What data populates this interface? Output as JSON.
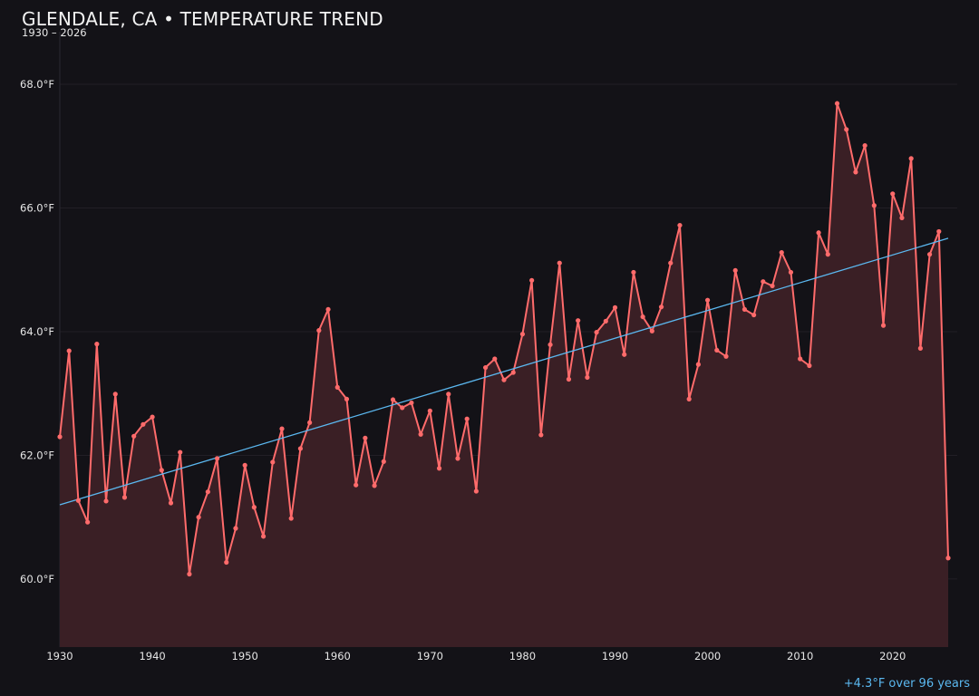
{
  "chart_data": {
    "type": "line",
    "title": "GLENDALE, CA • TEMPERATURE TREND",
    "subtitle": "1930 – 2026",
    "annotation": "+4.3°F over 96 years",
    "xlabel": "",
    "ylabel": "",
    "xlim": [
      1930,
      2026
    ],
    "ylim": [
      58.9,
      68.85
    ],
    "x_ticks": [
      "1930",
      "1940",
      "1950",
      "1960",
      "1970",
      "1980",
      "1990",
      "2000",
      "2010",
      "2020"
    ],
    "y_ticks": [
      {
        "value": 60,
        "label": "60.0°F"
      },
      {
        "value": 62,
        "label": "62.0°F"
      },
      {
        "value": 64,
        "label": "64.0°F"
      },
      {
        "value": 66,
        "label": "66.0°F"
      },
      {
        "value": 68,
        "label": "68.0°F"
      }
    ],
    "grid": true,
    "colors": {
      "background": "#131217",
      "series": "#ff6b6b",
      "fill": "#3a1f25",
      "trend": "#5bb8f0",
      "grid": "#221f26"
    },
    "series": [
      {
        "x": [
          1930,
          1931,
          1932,
          1933,
          1934,
          1935,
          1936,
          1937,
          1938,
          1939,
          1940,
          1941,
          1942,
          1943,
          1944,
          1945,
          1946,
          1947,
          1948,
          1949,
          1950,
          1951,
          1952,
          1953,
          1954,
          1955,
          1956,
          1957,
          1958,
          1959,
          1960,
          1961,
          1962,
          1963,
          1964,
          1965,
          1966,
          1967,
          1968,
          1969,
          1970,
          1971,
          1972,
          1973,
          1974,
          1975,
          1976,
          1977,
          1978,
          1979,
          1980,
          1981,
          1982,
          1983,
          1984,
          1985,
          1986,
          1987,
          1988,
          1989,
          1990,
          1991,
          1992,
          1993,
          1994,
          1995,
          1996,
          1997,
          1998,
          1999,
          2000,
          2001,
          2002,
          2003,
          2004,
          2005,
          2006,
          2007,
          2008,
          2009,
          2010,
          2011,
          2012,
          2013,
          2014,
          2015,
          2016,
          2017,
          2018,
          2019,
          2020,
          2021,
          2022,
          2023,
          2024,
          2025,
          2026
        ],
        "values": [
          62.3,
          63.69,
          61.27,
          60.92,
          63.8,
          61.26,
          62.99,
          61.32,
          62.31,
          62.5,
          62.62,
          61.76,
          61.23,
          62.05,
          60.08,
          61.0,
          61.41,
          61.95,
          60.27,
          60.82,
          61.84,
          61.16,
          60.69,
          61.89,
          62.43,
          60.98,
          62.11,
          62.53,
          64.02,
          64.36,
          63.1,
          62.91,
          61.52,
          62.28,
          61.51,
          61.9,
          62.9,
          62.77,
          62.85,
          62.34,
          62.72,
          61.79,
          62.99,
          61.95,
          62.59,
          61.42,
          63.42,
          63.56,
          63.22,
          63.34,
          63.96,
          64.83,
          62.33,
          63.79,
          65.11,
          63.23,
          64.18,
          63.26,
          63.99,
          64.17,
          64.39,
          63.63,
          64.96,
          64.24,
          64.01,
          64.4,
          65.11,
          65.72,
          62.91,
          63.47,
          64.51,
          63.7,
          63.6,
          64.99,
          64.36,
          64.27,
          64.81,
          64.74,
          65.28,
          64.96,
          63.56,
          63.45,
          65.6,
          65.25,
          67.69,
          67.27,
          66.58,
          67.01,
          66.04,
          64.1,
          66.23,
          65.84,
          66.8,
          63.73,
          65.25,
          65.62,
          60.34
        ]
      }
    ],
    "trend": {
      "x": [
        1930,
        2026
      ],
      "values": [
        61.2,
        65.51
      ]
    }
  }
}
